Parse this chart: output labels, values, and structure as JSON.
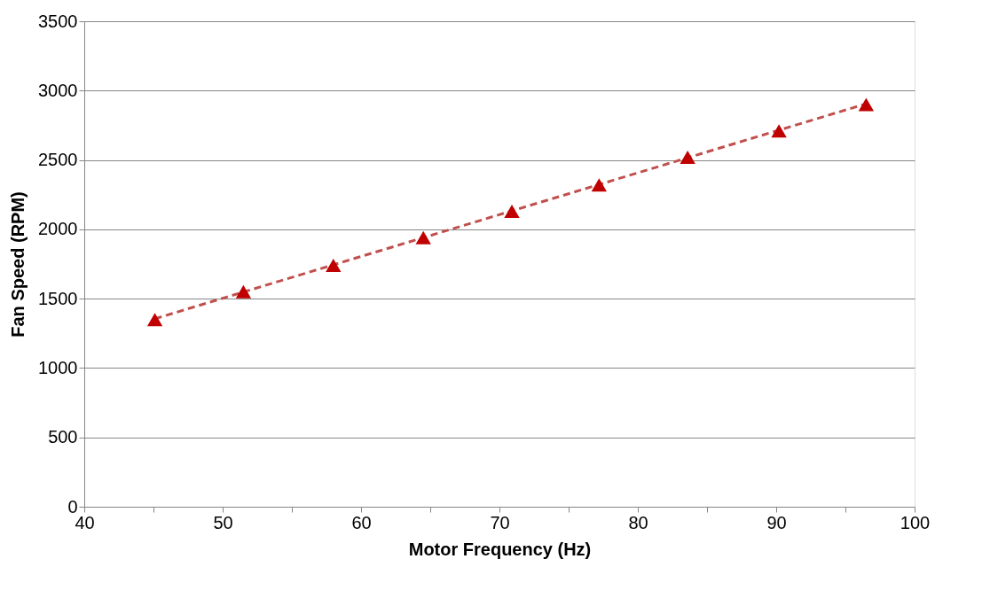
{
  "chart_data": {
    "type": "scatter",
    "xlabel": "Motor Frequency (Hz)",
    "ylabel": "Fan Speed (RPM)",
    "xlim": [
      40,
      100
    ],
    "ylim": [
      0,
      3500
    ],
    "xticks": [
      40,
      {
        "value": 45,
        "label": null
      },
      50,
      {
        "value": 55,
        "label": null
      },
      60,
      {
        "value": 65,
        "label": null
      },
      70,
      {
        "value": 75,
        "label": null
      },
      80,
      {
        "value": 85,
        "label": null
      },
      90,
      {
        "value": 95,
        "label": null
      },
      100
    ],
    "yticks": [
      0,
      500,
      1000,
      1500,
      2000,
      2500,
      3000,
      3500
    ],
    "grid": "y",
    "series": [
      {
        "marker": "triangle",
        "color": "#c00000",
        "x": [
          45.1,
          51.5,
          58.0,
          64.5,
          70.9,
          77.2,
          83.6,
          90.2,
          96.5
        ],
        "values": [
          1350,
          1550,
          1740,
          1940,
          2130,
          2320,
          2520,
          2710,
          2900
        ]
      },
      {
        "type": "line",
        "line_style": "dashed",
        "marker": "none",
        "color": "#c0504d",
        "x": [
          45.1,
          96.5
        ],
        "values": [
          1355,
          2905
        ]
      }
    ]
  }
}
